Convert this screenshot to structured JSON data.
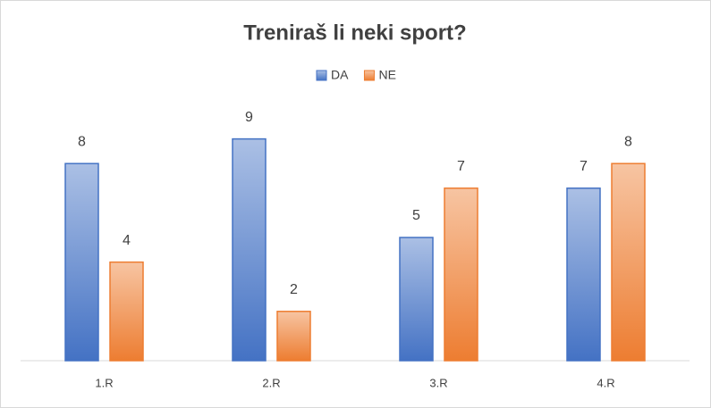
{
  "chart_data": {
    "type": "bar",
    "title": "Treniraš li neki sport?",
    "categories": [
      "1.R",
      "2.R",
      "3.R",
      "4.R"
    ],
    "series": [
      {
        "name": "DA",
        "color": "#4472c4",
        "values": [
          8,
          9,
          5,
          7
        ]
      },
      {
        "name": "NE",
        "color": "#ed7d31",
        "values": [
          4,
          2,
          7,
          8
        ]
      }
    ],
    "ylim": [
      0,
      10
    ]
  }
}
